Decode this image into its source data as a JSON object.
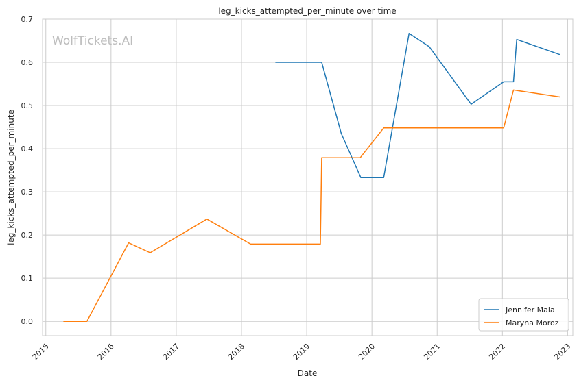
{
  "chart_data": {
    "type": "line",
    "title": "leg_kicks_attempted_per_minute over time",
    "xlabel": "Date",
    "ylabel": "leg_kicks_attempted_per_minute",
    "watermark": "WolfTickets.AI",
    "xlim": [
      2014.95,
      2023.08
    ],
    "ylim": [
      -0.033,
      0.7
    ],
    "xticks": [
      2015,
      2016,
      2017,
      2018,
      2019,
      2020,
      2021,
      2022,
      2023
    ],
    "xtick_labels": [
      "2015",
      "2016",
      "2017",
      "2018",
      "2019",
      "2020",
      "2021",
      "2022",
      "2023"
    ],
    "yticks": [
      0.0,
      0.1,
      0.2,
      0.3,
      0.4,
      0.5,
      0.6,
      0.7
    ],
    "ytick_labels": [
      "0.0",
      "0.1",
      "0.2",
      "0.3",
      "0.4",
      "0.5",
      "0.6",
      "0.7"
    ],
    "grid": true,
    "legend_position": "bottom-right",
    "series": [
      {
        "name": "Jennifer Maia",
        "color": "#1f77b4",
        "points": [
          [
            2018.52,
            0.6
          ],
          [
            2019.23,
            0.6
          ],
          [
            2019.53,
            0.435
          ],
          [
            2019.83,
            0.333
          ],
          [
            2020.18,
            0.333
          ],
          [
            2020.57,
            0.667
          ],
          [
            2020.88,
            0.636
          ],
          [
            2021.52,
            0.503
          ],
          [
            2022.02,
            0.555
          ],
          [
            2022.17,
            0.555
          ],
          [
            2022.22,
            0.653
          ],
          [
            2022.88,
            0.618
          ]
        ]
      },
      {
        "name": "Maryna Moroz",
        "color": "#ff7f0e",
        "points": [
          [
            2015.27,
            0.0
          ],
          [
            2015.63,
            0.0
          ],
          [
            2016.27,
            0.182
          ],
          [
            2016.6,
            0.159
          ],
          [
            2017.47,
            0.237
          ],
          [
            2018.14,
            0.179
          ],
          [
            2019.21,
            0.179
          ],
          [
            2019.23,
            0.379
          ],
          [
            2019.82,
            0.379
          ],
          [
            2020.18,
            0.448
          ],
          [
            2022.02,
            0.448
          ],
          [
            2022.17,
            0.536
          ],
          [
            2022.88,
            0.52
          ]
        ]
      }
    ]
  }
}
